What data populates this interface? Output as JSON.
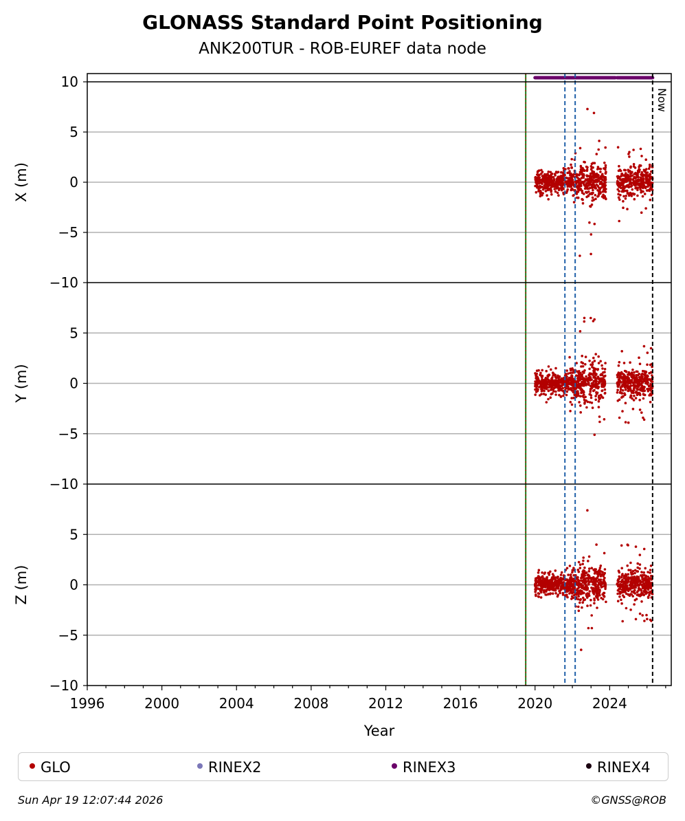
{
  "chart_data": {
    "type": "scatter",
    "title": "GLONASS Standard Point Positioning",
    "subtitle": "ANK200TUR - ROB-EUREF data node",
    "xlabel": "Year",
    "xlim": [
      1996,
      2027.3
    ],
    "x_ticks": [
      "1996",
      "2000",
      "2004",
      "2008",
      "2012",
      "2016",
      "2020",
      "2024"
    ],
    "now_label": "Now",
    "now_year": 2026.3,
    "green_line_year": 2019.5,
    "blue_dashed_years": [
      2021.6,
      2022.15
    ],
    "grid": "horizontal",
    "panels": [
      {
        "ylabel": "X (m)",
        "ylim": [
          -10,
          10
        ],
        "y_ticks": [
          "10",
          "5",
          "0",
          "−5",
          "−10"
        ]
      },
      {
        "ylabel": "Y (m)",
        "ylim": [
          -10,
          10
        ],
        "y_ticks": [
          "5",
          "0",
          "−5",
          "−10"
        ]
      },
      {
        "ylabel": "Z (m)",
        "ylim": [
          -10,
          10
        ],
        "y_ticks": [
          "5",
          "0",
          "−5",
          "−10"
        ]
      }
    ],
    "series": [
      {
        "name": "GLO",
        "color": "#b30000",
        "segments": [
          {
            "start": 2020.0,
            "end": 2021.8,
            "core_sd": 0.5,
            "outlier_range": 1.5
          },
          {
            "start": 2021.8,
            "end": 2022.3,
            "core_sd": 0.7,
            "outlier_range": 3.5
          },
          {
            "start": 2022.3,
            "end": 2023.2,
            "core_sd": 1.0,
            "outlier_range": 7.5
          },
          {
            "start": 2023.2,
            "end": 2023.8,
            "core_sd": 0.8,
            "outlier_range": 4.5
          },
          {
            "start": 2024.4,
            "end": 2026.3,
            "core_sd": 0.7,
            "outlier_range": 4.0
          }
        ]
      },
      {
        "name": "RINEX2",
        "color": "#7b77b8",
        "segments": []
      },
      {
        "name": "RINEX3",
        "color": "#6a0069",
        "segments": [
          [
            2020.0,
            2024.3
          ],
          [
            2024.4,
            2026.3
          ]
        ]
      },
      {
        "name": "RINEX4",
        "color": "#1a0010",
        "segments": []
      }
    ]
  },
  "footer": {
    "timestamp": "Sun Apr 19 12:07:44 2026",
    "credit": "©GNSS@ROB"
  }
}
